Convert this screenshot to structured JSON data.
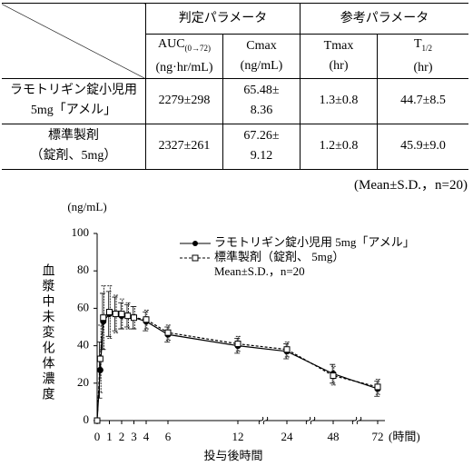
{
  "table": {
    "group_headers": [
      "判定パラメータ",
      "参考パラメータ"
    ],
    "param_headers": [
      {
        "label": "AUC",
        "sub": "(0→72)",
        "unit": "(ng·hr/mL)"
      },
      {
        "label": "Cmax",
        "unit": "(ng/mL)"
      },
      {
        "label": "Tmax",
        "unit": "(hr)"
      },
      {
        "label": "T",
        "sub": "1/2",
        "unit": "(hr)"
      }
    ],
    "rows": [
      [
        "ラモトリギン錠小児用\n5mg「アメル」",
        "2279±298",
        "65.48±\n8.36",
        "1.3±0.8",
        "44.7±8.5"
      ],
      [
        "標準製剤\n（錠剤、5mg）",
        "2327±261",
        "67.26±\n9.12",
        "1.2±0.8",
        "45.9±9.0"
      ]
    ],
    "note": "(Mean±S.D.，n=20)"
  },
  "chart_data": {
    "type": "line",
    "y_unit_label": "(ng/mL)",
    "ylabel": "血漿中未変化体濃度",
    "xlabel": "投与後時間",
    "x_unit_label": "(時間)",
    "x": [
      0,
      0.25,
      0.5,
      1,
      1.5,
      2,
      2.5,
      3,
      4,
      6,
      12,
      24,
      48,
      72
    ],
    "series": [
      {
        "name": "ラモトリギン錠小児用 5mg「アメル」",
        "color": "#000000",
        "marker": "circle",
        "dash": false,
        "values": [
          0,
          27,
          53,
          57,
          57,
          56,
          56,
          55,
          53,
          46,
          40,
          37,
          25,
          17
        ],
        "errors": [
          0,
          15,
          15,
          12,
          9,
          7,
          6,
          6,
          5,
          4,
          4,
          4,
          5,
          4
        ]
      },
      {
        "name": "標準製剤（錠剤、 5mg）",
        "color": "#000000",
        "marker": "square",
        "dash": true,
        "values": [
          0,
          33,
          55,
          58,
          57,
          57,
          56,
          55,
          54,
          47,
          41,
          38,
          24,
          18
        ],
        "errors": [
          0,
          18,
          17,
          14,
          10,
          8,
          7,
          6,
          5,
          4,
          4,
          4,
          5,
          4
        ]
      }
    ],
    "legend_note": "Mean±S.D.，n=20",
    "ylim": [
      0,
      100
    ],
    "yticks": [
      0,
      20,
      40,
      60,
      80,
      100
    ],
    "xticks": [
      0,
      1,
      2,
      3,
      4,
      6,
      12,
      24,
      48,
      72
    ]
  }
}
